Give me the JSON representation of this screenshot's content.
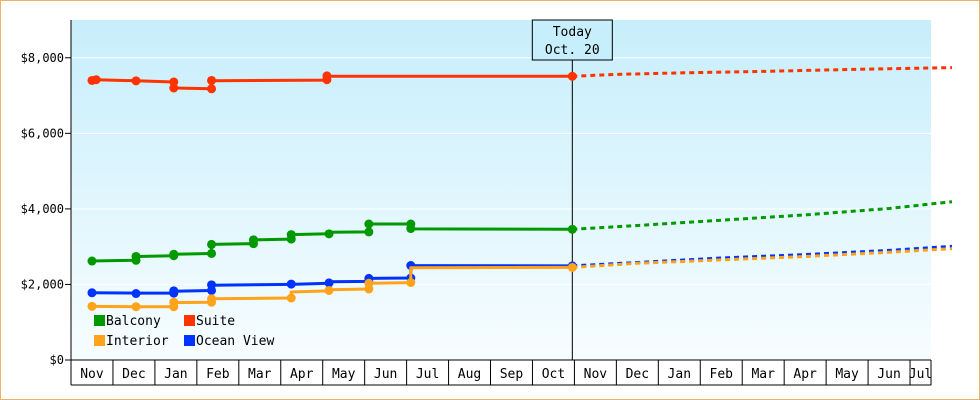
{
  "chart_data": {
    "type": "line",
    "title": "",
    "xlabel": "",
    "ylabel": "",
    "ylim": [
      0,
      9000
    ],
    "yticks": [
      0,
      2000,
      4000,
      6000,
      8000
    ],
    "ytick_labels": [
      "$0",
      "$2,000",
      "$4,000",
      "$6,000",
      "$8,000"
    ],
    "month_labels": [
      "Nov",
      "Dec",
      "Jan",
      "Feb",
      "Mar",
      "Apr",
      "May",
      "Jun",
      "Jul",
      "Aug",
      "Sep",
      "Oct",
      "Nov",
      "Dec",
      "Jan",
      "Feb",
      "Mar",
      "Apr",
      "May",
      "Jun",
      "Jul"
    ],
    "today": {
      "label_line1": "Today",
      "label_line2": "Oct. 20",
      "x": 11.45
    },
    "grid": true,
    "legend_placement": "bottom-left",
    "series": [
      {
        "name": "Suite",
        "color": "#ff3300",
        "history": [
          [
            -0.05,
            7400
          ],
          [
            0.1,
            7420
          ],
          [
            1.05,
            7390
          ],
          [
            1.95,
            7360
          ],
          [
            1.95,
            7200
          ],
          [
            2.85,
            7180
          ],
          [
            2.85,
            7390
          ],
          [
            5.6,
            7410
          ],
          [
            5.6,
            7510
          ],
          [
            11.45,
            7510
          ]
        ],
        "markers": [
          [
            0.0,
            7400
          ],
          [
            0.1,
            7420
          ],
          [
            1.05,
            7390
          ],
          [
            1.95,
            7360
          ],
          [
            1.95,
            7200
          ],
          [
            2.85,
            7180
          ],
          [
            2.85,
            7400
          ],
          [
            5.6,
            7420
          ],
          [
            5.6,
            7520
          ],
          [
            11.45,
            7510
          ]
        ],
        "forecast": [
          [
            11.45,
            7510
          ],
          [
            12.5,
            7560
          ],
          [
            14.0,
            7600
          ],
          [
            16.0,
            7640
          ],
          [
            18.0,
            7690
          ],
          [
            20.5,
            7740
          ]
        ]
      },
      {
        "name": "Balcony",
        "color": "#009900",
        "history": [
          [
            -0.05,
            2620
          ],
          [
            1.05,
            2640
          ],
          [
            1.05,
            2740
          ],
          [
            1.95,
            2760
          ],
          [
            1.95,
            2800
          ],
          [
            2.85,
            2820
          ],
          [
            2.85,
            3060
          ],
          [
            3.85,
            3080
          ],
          [
            3.85,
            3180
          ],
          [
            4.75,
            3200
          ],
          [
            4.75,
            3320
          ],
          [
            5.65,
            3340
          ],
          [
            5.65,
            3380
          ],
          [
            6.6,
            3390
          ],
          [
            6.6,
            3600
          ],
          [
            7.6,
            3600
          ],
          [
            7.6,
            3470
          ],
          [
            11.45,
            3460
          ]
        ],
        "markers": [
          [
            0.0,
            2620
          ],
          [
            1.05,
            2640
          ],
          [
            1.05,
            2740
          ],
          [
            1.95,
            2760
          ],
          [
            1.95,
            2800
          ],
          [
            2.85,
            2820
          ],
          [
            2.85,
            3060
          ],
          [
            3.85,
            3080
          ],
          [
            3.85,
            3180
          ],
          [
            4.75,
            3200
          ],
          [
            4.75,
            3320
          ],
          [
            5.65,
            3340
          ],
          [
            6.6,
            3390
          ],
          [
            6.6,
            3600
          ],
          [
            7.6,
            3600
          ],
          [
            7.6,
            3480
          ],
          [
            11.45,
            3460
          ]
        ],
        "forecast": [
          [
            11.45,
            3460
          ],
          [
            13.0,
            3560
          ],
          [
            15.0,
            3700
          ],
          [
            17.0,
            3840
          ],
          [
            19.0,
            4010
          ],
          [
            20.5,
            4190
          ]
        ]
      },
      {
        "name": "Ocean View",
        "color": "#0033ff",
        "history": [
          [
            -0.05,
            1780
          ],
          [
            1.05,
            1770
          ],
          [
            1.95,
            1770
          ],
          [
            1.95,
            1820
          ],
          [
            2.85,
            1840
          ],
          [
            2.85,
            1980
          ],
          [
            4.75,
            2000
          ],
          [
            5.65,
            2030
          ],
          [
            5.65,
            2070
          ],
          [
            6.6,
            2080
          ],
          [
            6.6,
            2160
          ],
          [
            7.6,
            2170
          ],
          [
            7.6,
            2500
          ],
          [
            11.45,
            2490
          ]
        ],
        "markers": [
          [
            0.0,
            1780
          ],
          [
            1.05,
            1760
          ],
          [
            1.95,
            1770
          ],
          [
            1.95,
            1830
          ],
          [
            2.85,
            1840
          ],
          [
            2.85,
            1990
          ],
          [
            4.75,
            2010
          ],
          [
            5.65,
            2040
          ],
          [
            6.6,
            2080
          ],
          [
            6.6,
            2160
          ],
          [
            7.6,
            2170
          ],
          [
            7.6,
            2500
          ],
          [
            11.45,
            2490
          ]
        ],
        "forecast": [
          [
            11.45,
            2490
          ],
          [
            13.0,
            2580
          ],
          [
            15.0,
            2700
          ],
          [
            17.0,
            2790
          ],
          [
            19.0,
            2900
          ],
          [
            20.5,
            3010
          ]
        ]
      },
      {
        "name": "Interior",
        "color": "#ffa31a",
        "history": [
          [
            -0.05,
            1420
          ],
          [
            1.05,
            1410
          ],
          [
            1.95,
            1410
          ],
          [
            1.95,
            1520
          ],
          [
            2.85,
            1530
          ],
          [
            2.85,
            1620
          ],
          [
            4.75,
            1640
          ],
          [
            4.75,
            1800
          ],
          [
            5.65,
            1830
          ],
          [
            5.65,
            1860
          ],
          [
            6.6,
            1880
          ],
          [
            6.6,
            2030
          ],
          [
            7.6,
            2050
          ],
          [
            7.6,
            2440
          ],
          [
            11.45,
            2450
          ]
        ],
        "markers": [
          [
            0.0,
            1420
          ],
          [
            1.05,
            1410
          ],
          [
            1.95,
            1410
          ],
          [
            1.95,
            1530
          ],
          [
            2.85,
            1530
          ],
          [
            2.85,
            1620
          ],
          [
            4.75,
            1640
          ],
          [
            5.65,
            1840
          ],
          [
            6.6,
            1880
          ],
          [
            6.6,
            2030
          ],
          [
            7.6,
            2050
          ],
          [
            11.45,
            2450
          ]
        ],
        "forecast": [
          [
            11.45,
            2450
          ],
          [
            13.0,
            2560
          ],
          [
            15.0,
            2650
          ],
          [
            17.0,
            2740
          ],
          [
            19.0,
            2850
          ],
          [
            20.5,
            2950
          ]
        ]
      }
    ],
    "legend": [
      {
        "name": "Balcony",
        "color": "#009900"
      },
      {
        "name": "Suite",
        "color": "#ff3300"
      },
      {
        "name": "Interior",
        "color": "#ffa31a"
      },
      {
        "name": "Ocean View",
        "color": "#0033ff"
      }
    ]
  }
}
